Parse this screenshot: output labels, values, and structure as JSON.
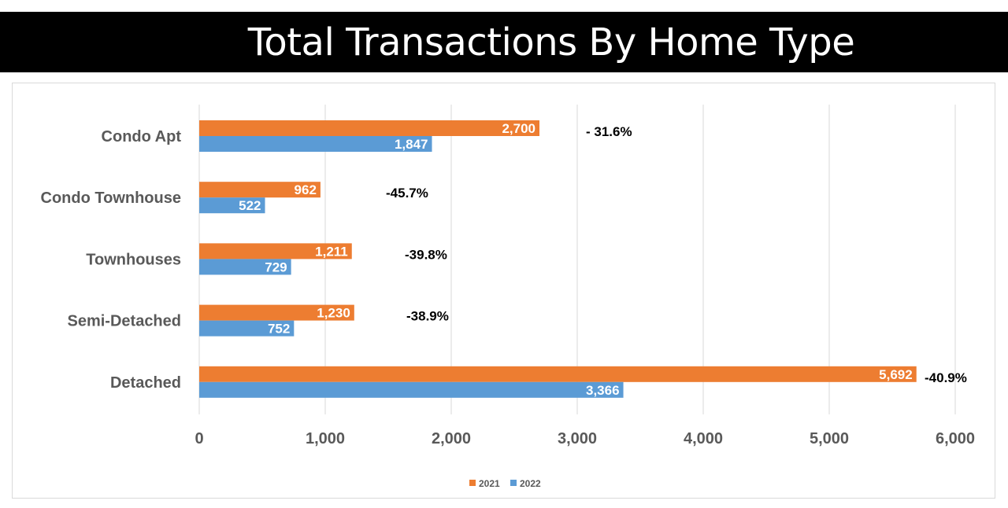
{
  "title": "Total Transactions By Home Type",
  "chart_data": {
    "type": "bar",
    "orientation": "horizontal",
    "title": "Total Transactions By Home Type",
    "categories": [
      "Condo Apt",
      "Condo Townhouse",
      "Townhouses",
      "Semi-Detached",
      "Detached"
    ],
    "series": [
      {
        "name": "2021",
        "color": "#ED7D31",
        "values": [
          2700,
          962,
          1211,
          1230,
          5692
        ],
        "labels": [
          "2,700",
          "962",
          "1,211",
          "1,230",
          "5,692"
        ]
      },
      {
        "name": "2022",
        "color": "#5B9BD5",
        "values": [
          1847,
          522,
          729,
          752,
          3366
        ],
        "labels": [
          "1,847",
          "522",
          "729",
          "752",
          "3,366"
        ]
      }
    ],
    "annotations": [
      "- 31.6%",
      "-45.7%",
      "-39.8%",
      "-38.9%",
      "-40.9%"
    ],
    "xlim": [
      0,
      6000
    ],
    "ticks": [
      0,
      1000,
      2000,
      3000,
      4000,
      5000,
      6000
    ],
    "tick_labels": [
      "0",
      "1,000",
      "2,000",
      "3,000",
      "4,000",
      "5,000",
      "6,000"
    ],
    "grid": true,
    "legend_position": "bottom",
    "gridline_color": "#D9D9D9"
  }
}
